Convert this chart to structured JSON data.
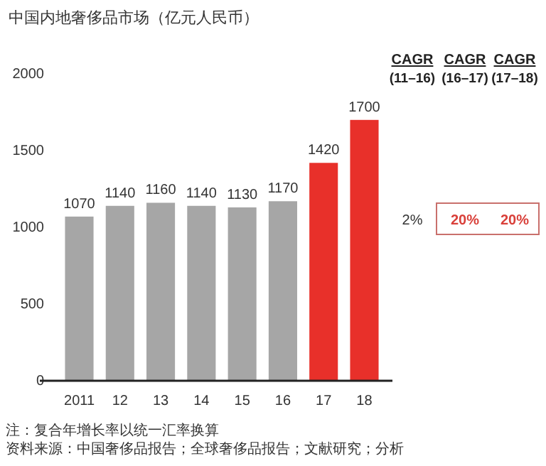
{
  "chart_data": {
    "type": "bar",
    "title": "中国内地奢侈品市场（亿元人民币）",
    "categories": [
      "2011",
      "12",
      "13",
      "14",
      "15",
      "16",
      "17",
      "18"
    ],
    "values": [
      1070,
      1140,
      1160,
      1140,
      1130,
      1170,
      1420,
      1700
    ],
    "colors": [
      "#a6a6a6",
      "#a6a6a6",
      "#a6a6a6",
      "#a6a6a6",
      "#a6a6a6",
      "#a6a6a6",
      "#e8302a",
      "#e8302a"
    ],
    "ylim": [
      0,
      2000
    ],
    "yticks": [
      0,
      500,
      1000,
      1500,
      2000
    ],
    "grid": false,
    "data_labels": true,
    "annotations": [
      "CAGR",
      "(11–16)",
      "CAGR",
      "(16–17)",
      "CAGR",
      "(17–18)",
      "2%",
      "20%",
      "20%",
      "注：复合年增长率以统一汇率换算",
      "资料来源：中国奢侈品报告；全球奢侈品报告；文献研究；分析"
    ]
  }
}
